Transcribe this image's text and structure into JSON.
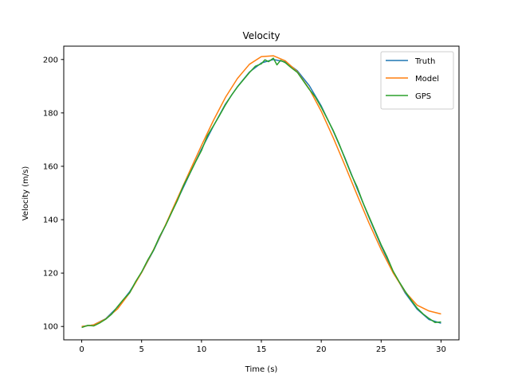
{
  "chart_data": {
    "type": "line",
    "title": "Velocity",
    "xlabel": "Time (s)",
    "ylabel": "Velocity (m/s)",
    "xlim": [
      -1.5,
      31.5
    ],
    "ylim": [
      95,
      205
    ],
    "xticks": [
      0,
      5,
      10,
      15,
      20,
      25,
      30
    ],
    "yticks": [
      100,
      120,
      140,
      160,
      180,
      200
    ],
    "grid": false,
    "legend_position": "top-right",
    "series": [
      {
        "name": "Truth",
        "color": "#1f77b4",
        "x": [
          0,
          1,
          2,
          3,
          4,
          5,
          6,
          7,
          8,
          9,
          10,
          11,
          12,
          13,
          14,
          15,
          16,
          17,
          18,
          19,
          20,
          21,
          22,
          23,
          24,
          25,
          26,
          27,
          28,
          29,
          30
        ],
        "y": [
          100.0,
          100.6,
          102.9,
          107.3,
          113.0,
          120.2,
          128.5,
          137.9,
          147.5,
          157.0,
          166.4,
          175.1,
          183.3,
          189.8,
          195.3,
          198.7,
          200.0,
          199.1,
          195.8,
          190.2,
          182.6,
          173.2,
          162.9,
          151.6,
          140.7,
          130.2,
          120.6,
          112.6,
          106.5,
          102.6,
          101.2
        ]
      },
      {
        "name": "Model",
        "color": "#ff7f0e",
        "x": [
          0,
          1,
          2,
          3,
          4,
          5,
          6,
          7,
          8,
          9,
          10,
          11,
          12,
          13,
          14,
          15,
          16,
          17,
          18,
          19,
          20,
          21,
          22,
          23,
          24,
          25,
          26,
          27,
          28,
          29,
          30
        ],
        "y": [
          100.0,
          100.6,
          102.8,
          106.6,
          112.6,
          120.2,
          128.8,
          138.1,
          148.1,
          158.0,
          167.8,
          177.2,
          185.8,
          192.9,
          198.2,
          201.1,
          201.4,
          199.5,
          195.4,
          189.0,
          180.6,
          170.7,
          160.1,
          149.2,
          138.6,
          128.8,
          120.1,
          113.0,
          108.0,
          105.8,
          104.7
        ]
      },
      {
        "name": "GPS",
        "color": "#2ca02c",
        "x": [
          0,
          0.5,
          1,
          1.5,
          2,
          2.5,
          3,
          3.5,
          4,
          4.5,
          5,
          5.5,
          6,
          6.5,
          7,
          7.5,
          8,
          8.5,
          9,
          9.5,
          10,
          10.5,
          11,
          11.5,
          12,
          12.5,
          13,
          13.5,
          14,
          14.5,
          15,
          15.3,
          15.6,
          16,
          16.3,
          16.6,
          17,
          17.5,
          18,
          18.5,
          19,
          19.5,
          20,
          20.5,
          21,
          21.5,
          22,
          22.5,
          23,
          23.5,
          24,
          24.5,
          25,
          25.5,
          26,
          26.5,
          27,
          27.5,
          28,
          28.5,
          29,
          29.5,
          30
        ],
        "y": [
          99.6,
          100.4,
          100.2,
          101.3,
          102.7,
          104.6,
          107.5,
          110.2,
          112.6,
          116.8,
          120.4,
          124.8,
          128.6,
          133.7,
          137.8,
          142.6,
          147.3,
          152.8,
          157.1,
          161.6,
          165.9,
          171.5,
          175.2,
          179.0,
          183.0,
          186.6,
          189.7,
          192.4,
          195.1,
          197.5,
          198.4,
          199.9,
          199.2,
          200.5,
          198.0,
          199.7,
          198.8,
          196.9,
          195.2,
          192.0,
          188.8,
          186.0,
          182.1,
          177.8,
          173.4,
          168.3,
          162.6,
          157.0,
          152.2,
          146.2,
          141.0,
          135.8,
          130.6,
          126.0,
          120.7,
          116.8,
          113.2,
          109.9,
          106.9,
          104.7,
          103.0,
          101.5,
          101.7
        ]
      }
    ]
  }
}
